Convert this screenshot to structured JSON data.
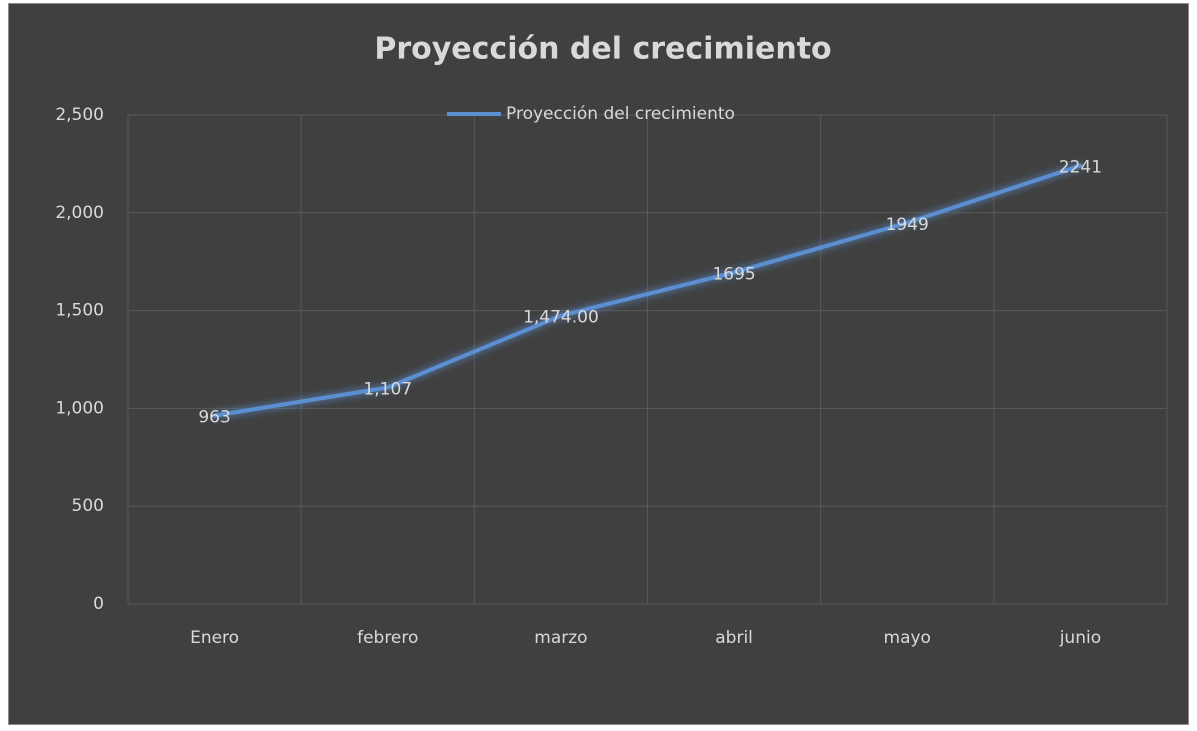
{
  "chart_data": {
    "type": "line",
    "title": "Proyección del crecimiento",
    "categories": [
      "Enero",
      "febrero",
      "marzo",
      "abril",
      "mayo",
      "junio"
    ],
    "series": [
      {
        "name": "Proyección del crecimiento",
        "color": "#5b8fd1",
        "values": [
          963,
          1107,
          1474,
          1695,
          1949,
          2241
        ],
        "value_labels": [
          "963",
          "1,107",
          "1,474.00",
          "1695",
          "1949",
          "2241"
        ]
      }
    ],
    "ylim": [
      0,
      2500
    ],
    "yticks": [
      0,
      500,
      {
        "value": 1000,
        "label": "1,000"
      },
      {
        "value": 1500,
        "label": "1,500"
      },
      {
        "value": 2000,
        "label": "2,000"
      },
      {
        "value": 2500,
        "label": "2,500"
      }
    ],
    "grid": true,
    "legend": "top"
  }
}
